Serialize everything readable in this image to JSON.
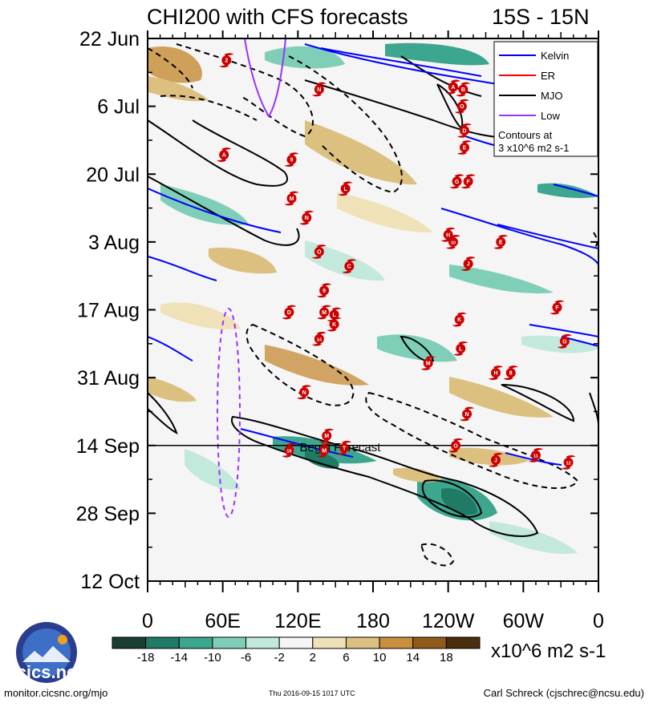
{
  "chart_data": {
    "type": "heatmap",
    "title": "CHI200 with CFS forecasts",
    "region": "15S - 15N",
    "x_ticks": [
      "0",
      "60E",
      "120E",
      "180",
      "120W",
      "60W",
      "0"
    ],
    "x_tick_values": [
      0,
      60,
      120,
      180,
      240,
      300,
      360
    ],
    "xlim": [
      0,
      360
    ],
    "y_ticks": [
      "22 Jun",
      "6 Jul",
      "20 Jul",
      "3 Aug",
      "17 Aug",
      "31 Aug",
      "14 Sep",
      "28 Sep",
      "12 Oct"
    ],
    "y_tick_days": [
      0,
      14,
      28,
      42,
      56,
      70,
      84,
      98,
      112
    ],
    "ylim_days": [
      0,
      112
    ],
    "forecast_start_day": 84,
    "forecast_label": "Begin Forecast",
    "colorbar": {
      "labels": [
        "-18",
        "-14",
        "-10",
        "-6",
        "-2",
        "2",
        "6",
        "10",
        "14",
        "18"
      ],
      "colors": [
        "#1a3d33",
        "#1f7a66",
        "#3da68f",
        "#7fcfb8",
        "#c3e8dc",
        "#f5f5f5",
        "#f0e2b8",
        "#dcc080",
        "#c8903e",
        "#8f5a1a",
        "#4a2e0e"
      ],
      "units": "x10^6 m2 s-1"
    },
    "legend": {
      "entries": [
        {
          "label": "Kelvin",
          "color": "#0000ff"
        },
        {
          "label": "ER",
          "color": "#ff0000"
        },
        {
          "label": "MJO",
          "color": "#000000"
        },
        {
          "label": "Low",
          "color": "#9933ff"
        }
      ],
      "note_line1": "Contours at",
      "note_line2": "3 x10^6 m2 s-1"
    },
    "storms": [
      {
        "lon": 63,
        "day": 4.5,
        "label": "2"
      },
      {
        "lon": 137,
        "day": 10.5,
        "label": "N"
      },
      {
        "lon": 61,
        "day": 24,
        "label": "A"
      },
      {
        "lon": 115,
        "day": 25,
        "label": "9"
      },
      {
        "lon": 158,
        "day": 31,
        "label": "L"
      },
      {
        "lon": 115,
        "day": 33,
        "label": "M"
      },
      {
        "lon": 127,
        "day": 37,
        "label": "N"
      },
      {
        "lon": 137,
        "day": 44,
        "label": "O"
      },
      {
        "lon": 161,
        "day": 47,
        "label": "C"
      },
      {
        "lon": 141,
        "day": 52,
        "label": "9"
      },
      {
        "lon": 113,
        "day": 56.5,
        "label": "D"
      },
      {
        "lon": 141,
        "day": 56.5,
        "label": "M"
      },
      {
        "lon": 149,
        "day": 57,
        "label": "L"
      },
      {
        "lon": 149,
        "day": 59,
        "label": "K"
      },
      {
        "lon": 137,
        "day": 62,
        "label": "14"
      },
      {
        "lon": 125,
        "day": 73,
        "label": "N"
      },
      {
        "lon": 143,
        "day": 82,
        "label": "M"
      },
      {
        "lon": 141,
        "day": 85,
        "label": "M"
      },
      {
        "lon": 157,
        "day": 84.5,
        "label": "T"
      },
      {
        "lon": 113,
        "day": 85,
        "label": "19"
      },
      {
        "lon": 244,
        "day": 10,
        "label": "A"
      },
      {
        "lon": 252,
        "day": 10.5,
        "label": "B"
      },
      {
        "lon": 251,
        "day": 14,
        "label": "O"
      },
      {
        "lon": 253,
        "day": 19,
        "label": "D"
      },
      {
        "lon": 253,
        "day": 22.5,
        "label": "E"
      },
      {
        "lon": 247,
        "day": 29.5,
        "label": "G"
      },
      {
        "lon": 256,
        "day": 29.5,
        "label": "F"
      },
      {
        "lon": 240,
        "day": 40.5,
        "label": "H"
      },
      {
        "lon": 244,
        "day": 42,
        "label": "10"
      },
      {
        "lon": 282,
        "day": 42,
        "label": "E"
      },
      {
        "lon": 256,
        "day": 46.5,
        "label": "J"
      },
      {
        "lon": 249,
        "day": 58,
        "label": "K"
      },
      {
        "lon": 250,
        "day": 64,
        "label": "L"
      },
      {
        "lon": 224,
        "day": 67,
        "label": "M"
      },
      {
        "lon": 278,
        "day": 69,
        "label": "H"
      },
      {
        "lon": 290,
        "day": 69,
        "label": "8"
      },
      {
        "lon": 255,
        "day": 77.5,
        "label": "N"
      },
      {
        "lon": 246,
        "day": 84,
        "label": "O"
      },
      {
        "lon": 278,
        "day": 87,
        "label": "J"
      },
      {
        "lon": 310,
        "day": 86,
        "label": "11"
      },
      {
        "lon": 336,
        "day": 87.5,
        "label": "12"
      },
      {
        "lon": 327,
        "day": 55.5,
        "label": "F"
      },
      {
        "lon": 333,
        "day": 62.5,
        "label": "G"
      }
    ]
  },
  "footer": {
    "left": "monitor.cicsnc.org/mjo",
    "center": "Thu 2016-09-15 1017 UTC",
    "right": "Carl Schreck (cjschrec@ncsu.edu)",
    "logo_text": "cics.nc"
  }
}
